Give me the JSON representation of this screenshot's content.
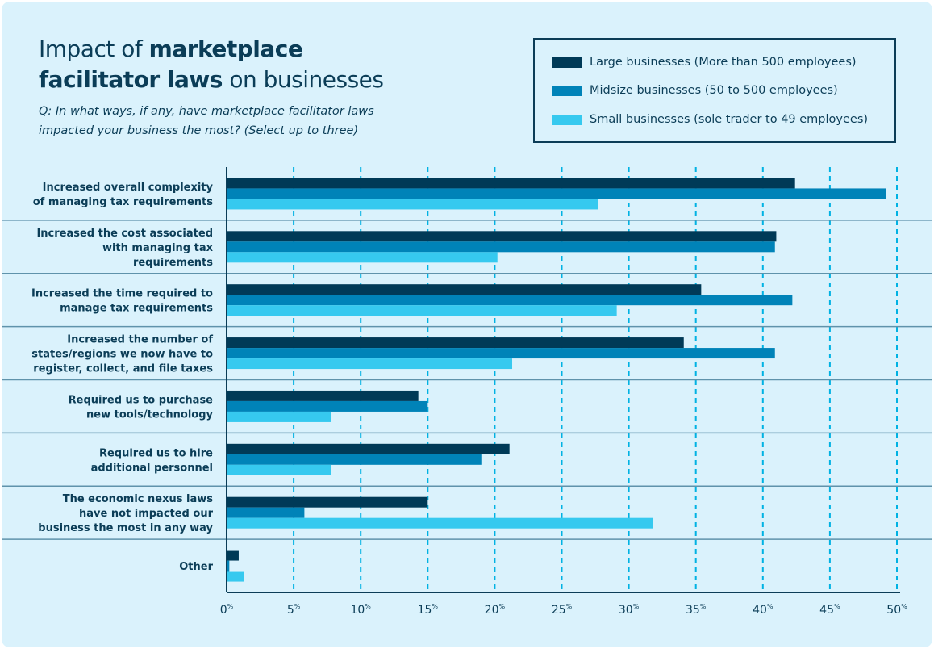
{
  "chart_data": {
    "type": "bar",
    "orientation": "horizontal",
    "title_parts": [
      {
        "text": "Impact of ",
        "bold": false
      },
      {
        "text": "marketplace",
        "bold": true
      },
      {
        "text": "facilitator laws",
        "bold": true,
        "newline": true
      },
      {
        "text": " on businesses",
        "bold": false
      }
    ],
    "subtitle_lines": [
      "Q: In what ways, if any, have marketplace facilitator laws",
      "impacted your business the most? (Select up to three)"
    ],
    "categories": [
      [
        "Increased overall complexity",
        "of managing tax requirements"
      ],
      [
        "Increased the cost associated",
        "with managing tax",
        "requirements"
      ],
      [
        "Increased the time required to",
        "manage tax requirements"
      ],
      [
        "Increased the number of",
        "states/regions we now have to",
        "register, collect, and file taxes"
      ],
      [
        "Required us to purchase",
        "new tools/technology"
      ],
      [
        "Required us to hire",
        "additional personnel"
      ],
      [
        "The economic nexus laws",
        "have not impacted our",
        "business the most in any way"
      ],
      [
        "Other"
      ]
    ],
    "series": [
      {
        "name": "Large businesses (More than 500 employees)",
        "color": "#003a57",
        "values": [
          42.4,
          41.0,
          35.4,
          34.1,
          14.3,
          21.1,
          15.0,
          0.9
        ]
      },
      {
        "name": "Midsize businesses (50 to 500 employees)",
        "color": "#0083b8",
        "values": [
          49.2,
          40.9,
          42.2,
          40.9,
          15.0,
          19.0,
          5.8,
          0.2
        ]
      },
      {
        "name": "Small businesses (sole trader to 49 employees)",
        "color": "#36c9ef",
        "values": [
          27.7,
          20.2,
          29.1,
          21.3,
          7.8,
          7.8,
          31.8,
          1.3
        ]
      }
    ],
    "xlim": [
      0,
      50
    ],
    "xticks": [
      0,
      5,
      10,
      15,
      20,
      25,
      30,
      35,
      40,
      45,
      50
    ],
    "tick_suffix": "%",
    "grid": true,
    "legend_position": "top-right",
    "xlabel": "",
    "ylabel": ""
  }
}
